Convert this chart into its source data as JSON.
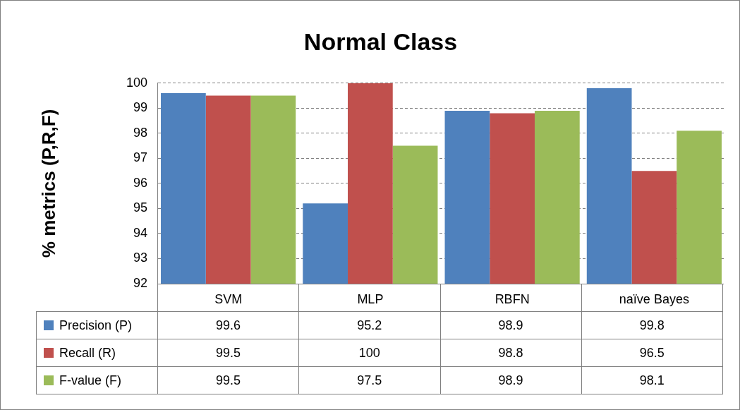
{
  "chart_data": {
    "type": "bar",
    "title": "Normal Class",
    "ylabel": "% metrics (P,R,F)",
    "categories": [
      "SVM",
      "MLP",
      "RBFN",
      "naïve Bayes"
    ],
    "series": [
      {
        "name": "Precision (P)",
        "color": "#4f81bd",
        "values": [
          99.6,
          95.2,
          98.9,
          99.8
        ]
      },
      {
        "name": "Recall (R)",
        "color": "#c0504d",
        "values": [
          99.5,
          100,
          98.8,
          96.5
        ]
      },
      {
        "name": "F-value (F)",
        "color": "#9bbb59",
        "values": [
          99.5,
          97.5,
          98.9,
          98.1
        ]
      }
    ],
    "ylim": [
      92,
      100
    ],
    "yticks": [
      92,
      93,
      94,
      95,
      96,
      97,
      98,
      99,
      100
    ],
    "grid": "y",
    "legend": "bottom",
    "data_labels": true
  }
}
